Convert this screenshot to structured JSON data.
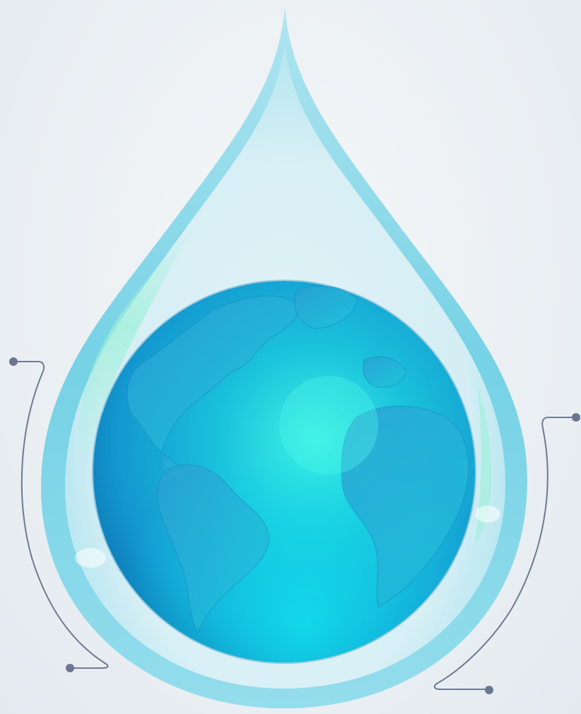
{
  "scene": {
    "subject": "water-drop-globe",
    "colors": {
      "background": "#eaf0f4",
      "drop_edge": "#6fd3e6",
      "drop_inner": "#cfeef5",
      "globe_light": "#3ef0e6",
      "globe_mid": "#17b6d9",
      "globe_dark": "#0a6fae",
      "land": "#1fa0cf",
      "connector_line": "#6e7a92",
      "connector_dot": "#6b7690"
    }
  }
}
